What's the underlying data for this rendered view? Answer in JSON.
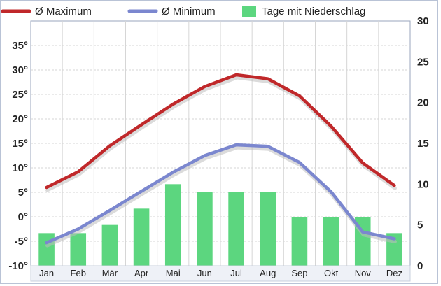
{
  "chart_data": {
    "type": "line+bar",
    "categories": [
      "Jan",
      "Feb",
      "Mär",
      "Apr",
      "Mai",
      "Jun",
      "Jul",
      "Aug",
      "Sep",
      "Okt",
      "Nov",
      "Dez"
    ],
    "series": [
      {
        "name": "Ø Maximum",
        "type": "line",
        "axis": "left",
        "color": "#c0282a",
        "values": [
          6,
          9.2,
          14.5,
          18.8,
          23,
          26.6,
          29,
          28.2,
          24.7,
          18.5,
          11,
          6.4
        ]
      },
      {
        "name": "Ø Minimum",
        "type": "line",
        "axis": "left",
        "color": "#7b87cf",
        "values": [
          -5.3,
          -2.5,
          1.3,
          5.2,
          9.1,
          12.5,
          14.7,
          14.4,
          11.1,
          5.1,
          -3.1,
          -4.5
        ]
      },
      {
        "name": "Tage mit Niederschlag",
        "type": "bar",
        "axis": "right",
        "color": "#5cd67f",
        "values": [
          4,
          4,
          5,
          7,
          10,
          9,
          9,
          9,
          6,
          6,
          6,
          4
        ]
      }
    ],
    "left_axis": {
      "ticks": [
        -10,
        -5,
        0,
        5,
        10,
        15,
        20,
        25,
        30,
        35
      ],
      "tick_labels": [
        "-10°",
        "-5°",
        "0°",
        "5°",
        "10°",
        "15°",
        "20°",
        "25°",
        "30°",
        "35°"
      ],
      "range": [
        -10,
        40
      ]
    },
    "right_axis": {
      "ticks": [
        0,
        5,
        10,
        15,
        20,
        25,
        30
      ],
      "tick_labels": [
        "0",
        "5",
        "10",
        "15",
        "20",
        "25",
        "30"
      ],
      "range": [
        0,
        30
      ]
    },
    "grid": true,
    "legend_position": "top"
  }
}
